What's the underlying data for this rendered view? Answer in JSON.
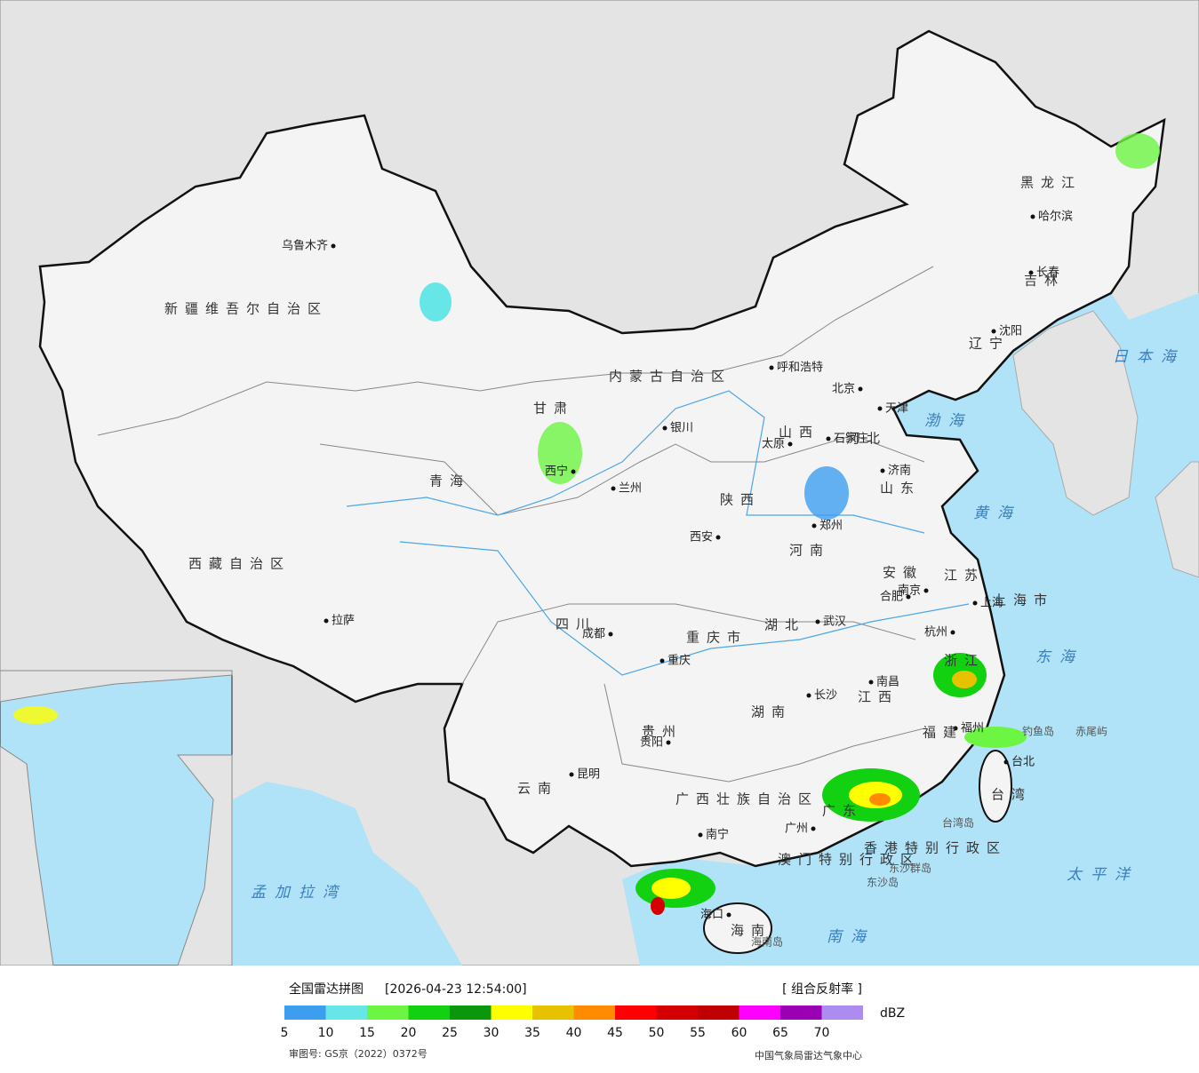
{
  "header": {
    "title": "全国雷达拼图",
    "timestamp": "[2026-04-23 12:54:00]",
    "product": "[ 组合反射率 ]"
  },
  "legend": {
    "unit": "dBZ",
    "ticks": [
      5,
      10,
      15,
      20,
      25,
      30,
      35,
      40,
      45,
      50,
      55,
      60,
      65,
      70
    ],
    "colors": [
      "#3d9ef0",
      "#66e6e6",
      "#6cf542",
      "#11d111",
      "#0a980a",
      "#ffff00",
      "#e6c200",
      "#ff8c00",
      "#ff0000",
      "#d40000",
      "#c00000",
      "#ff00ff",
      "#9a00b4",
      "#ad8cf0"
    ]
  },
  "footer": {
    "approval": "审图号: GS京（2022）0372号",
    "source": "中国气象局雷达气象中心"
  },
  "map": {
    "cities": [
      "乌鲁木齐",
      "拉萨",
      "西宁",
      "兰州",
      "银川",
      "呼和浩特",
      "北京",
      "天津",
      "石家庄",
      "太原",
      "济南",
      "郑州",
      "西安",
      "成都",
      "重庆",
      "武汉",
      "合肥",
      "南京",
      "上海",
      "杭州",
      "南昌",
      "长沙",
      "贵阳",
      "昆明",
      "南宁",
      "广州",
      "福州",
      "台北",
      "海口",
      "沈阳",
      "长春",
      "哈尔滨"
    ],
    "regions": [
      "新疆维吾尔自治区",
      "西藏自治区",
      "青海",
      "甘肃",
      "内蒙古自治区",
      "黑龙江",
      "吉林",
      "辽宁",
      "河北",
      "山西",
      "山东",
      "河南",
      "陕西",
      "四川",
      "重庆市",
      "湖北",
      "安徽",
      "江苏",
      "上海市",
      "浙江",
      "江西",
      "湖南",
      "贵州",
      "云南",
      "广西壮族自治区",
      "广东",
      "福建",
      "台湾",
      "海南",
      "香港特别行政区",
      "澳门特别行政区"
    ],
    "seas": [
      "日本海",
      "渤海",
      "黄海",
      "东海",
      "南海",
      "太平洋",
      "孟加拉湾"
    ],
    "islands": [
      "钓鱼岛",
      "赤尾屿",
      "台湾岛",
      "海南岛",
      "东沙群岛",
      "东沙岛"
    ]
  }
}
